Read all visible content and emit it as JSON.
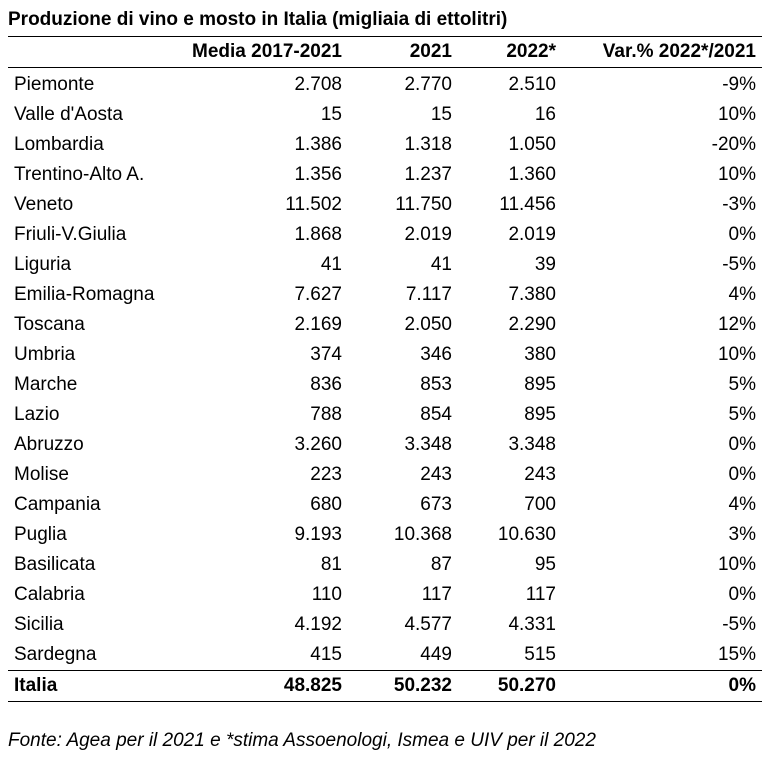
{
  "title": "Produzione di vino e mosto in Italia (migliaia di ettolitri)",
  "columns": [
    "",
    "Media 2017-2021",
    "2021",
    "2022*",
    "Var.% 2022*/2021"
  ],
  "rows": [
    {
      "region": "Piemonte",
      "media": "2.708",
      "y2021": "2.770",
      "y2022": "2.510",
      "var": "-9%"
    },
    {
      "region": "Valle d'Aosta",
      "media": "15",
      "y2021": "15",
      "y2022": "16",
      "var": "10%"
    },
    {
      "region": "Lombardia",
      "media": "1.386",
      "y2021": "1.318",
      "y2022": "1.050",
      "var": "-20%"
    },
    {
      "region": "Trentino-Alto A.",
      "media": "1.356",
      "y2021": "1.237",
      "y2022": "1.360",
      "var": "10%"
    },
    {
      "region": "Veneto",
      "media": "11.502",
      "y2021": "11.750",
      "y2022": "11.456",
      "var": "-3%"
    },
    {
      "region": "Friuli-V.Giulia",
      "media": "1.868",
      "y2021": "2.019",
      "y2022": "2.019",
      "var": "0%"
    },
    {
      "region": "Liguria",
      "media": "41",
      "y2021": "41",
      "y2022": "39",
      "var": "-5%"
    },
    {
      "region": "Emilia-Romagna",
      "media": "7.627",
      "y2021": "7.117",
      "y2022": "7.380",
      "var": "4%"
    },
    {
      "region": "Toscana",
      "media": "2.169",
      "y2021": "2.050",
      "y2022": "2.290",
      "var": "12%"
    },
    {
      "region": "Umbria",
      "media": "374",
      "y2021": "346",
      "y2022": "380",
      "var": "10%"
    },
    {
      "region": "Marche",
      "media": "836",
      "y2021": "853",
      "y2022": "895",
      "var": "5%"
    },
    {
      "region": "Lazio",
      "media": "788",
      "y2021": "854",
      "y2022": "895",
      "var": "5%"
    },
    {
      "region": "Abruzzo",
      "media": "3.260",
      "y2021": "3.348",
      "y2022": "3.348",
      "var": "0%"
    },
    {
      "region": "Molise",
      "media": "223",
      "y2021": "243",
      "y2022": "243",
      "var": "0%"
    },
    {
      "region": "Campania",
      "media": "680",
      "y2021": "673",
      "y2022": "700",
      "var": "4%"
    },
    {
      "region": "Puglia",
      "media": "9.193",
      "y2021": "10.368",
      "y2022": "10.630",
      "var": "3%"
    },
    {
      "region": "Basilicata",
      "media": "81",
      "y2021": "87",
      "y2022": "95",
      "var": "10%"
    },
    {
      "region": "Calabria",
      "media": "110",
      "y2021": "117",
      "y2022": "117",
      "var": "0%"
    },
    {
      "region": "Sicilia",
      "media": "4.192",
      "y2021": "4.577",
      "y2022": "4.331",
      "var": "-5%"
    },
    {
      "region": "Sardegna",
      "media": "415",
      "y2021": "449",
      "y2022": "515",
      "var": "15%"
    }
  ],
  "total": {
    "region": "Italia",
    "media": "48.825",
    "y2021": "50.232",
    "y2022": "50.270",
    "var": "0%"
  },
  "source": "Fonte: Agea per il 2021 e *stima Assoenologi, Ismea e UIV per il 2022"
}
